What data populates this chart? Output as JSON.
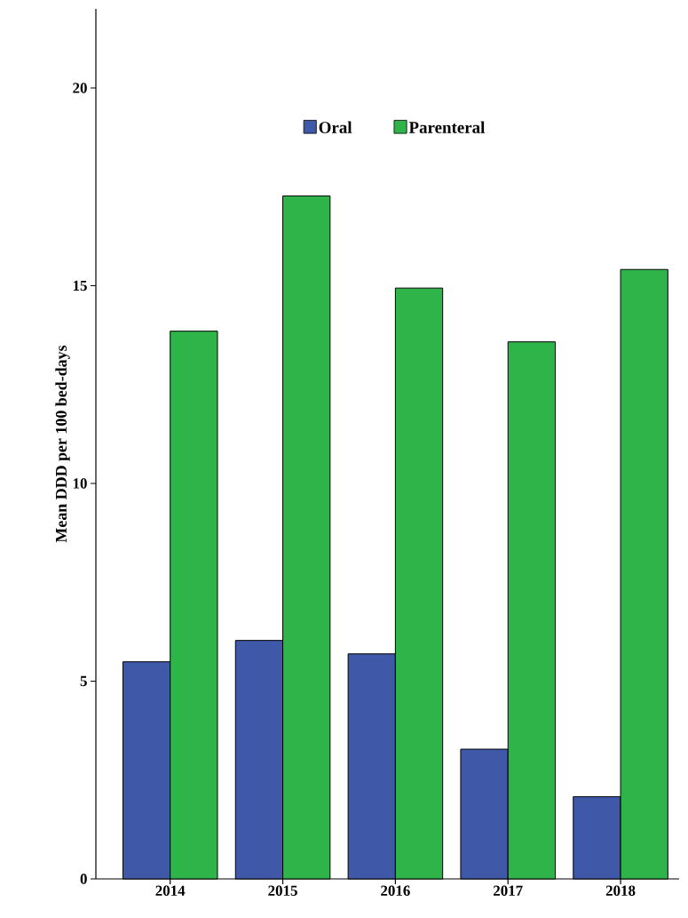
{
  "chart_data": {
    "type": "bar",
    "ylabel": "Mean DDD per 100 bed-days",
    "categories": [
      "2014",
      "2015",
      "2016",
      "2017",
      "2018"
    ],
    "series": [
      {
        "name": "Oral",
        "color": "#3f58a8",
        "values": [
          5.49,
          6.03,
          5.69,
          3.28,
          2.08
        ]
      },
      {
        "name": "Parenteral",
        "color": "#2fb44a",
        "values": [
          13.85,
          17.27,
          14.94,
          13.58,
          15.41
        ]
      }
    ],
    "ylim": [
      0,
      22
    ],
    "yticks": [
      0,
      5,
      10,
      15,
      20
    ],
    "legend": "top"
  }
}
